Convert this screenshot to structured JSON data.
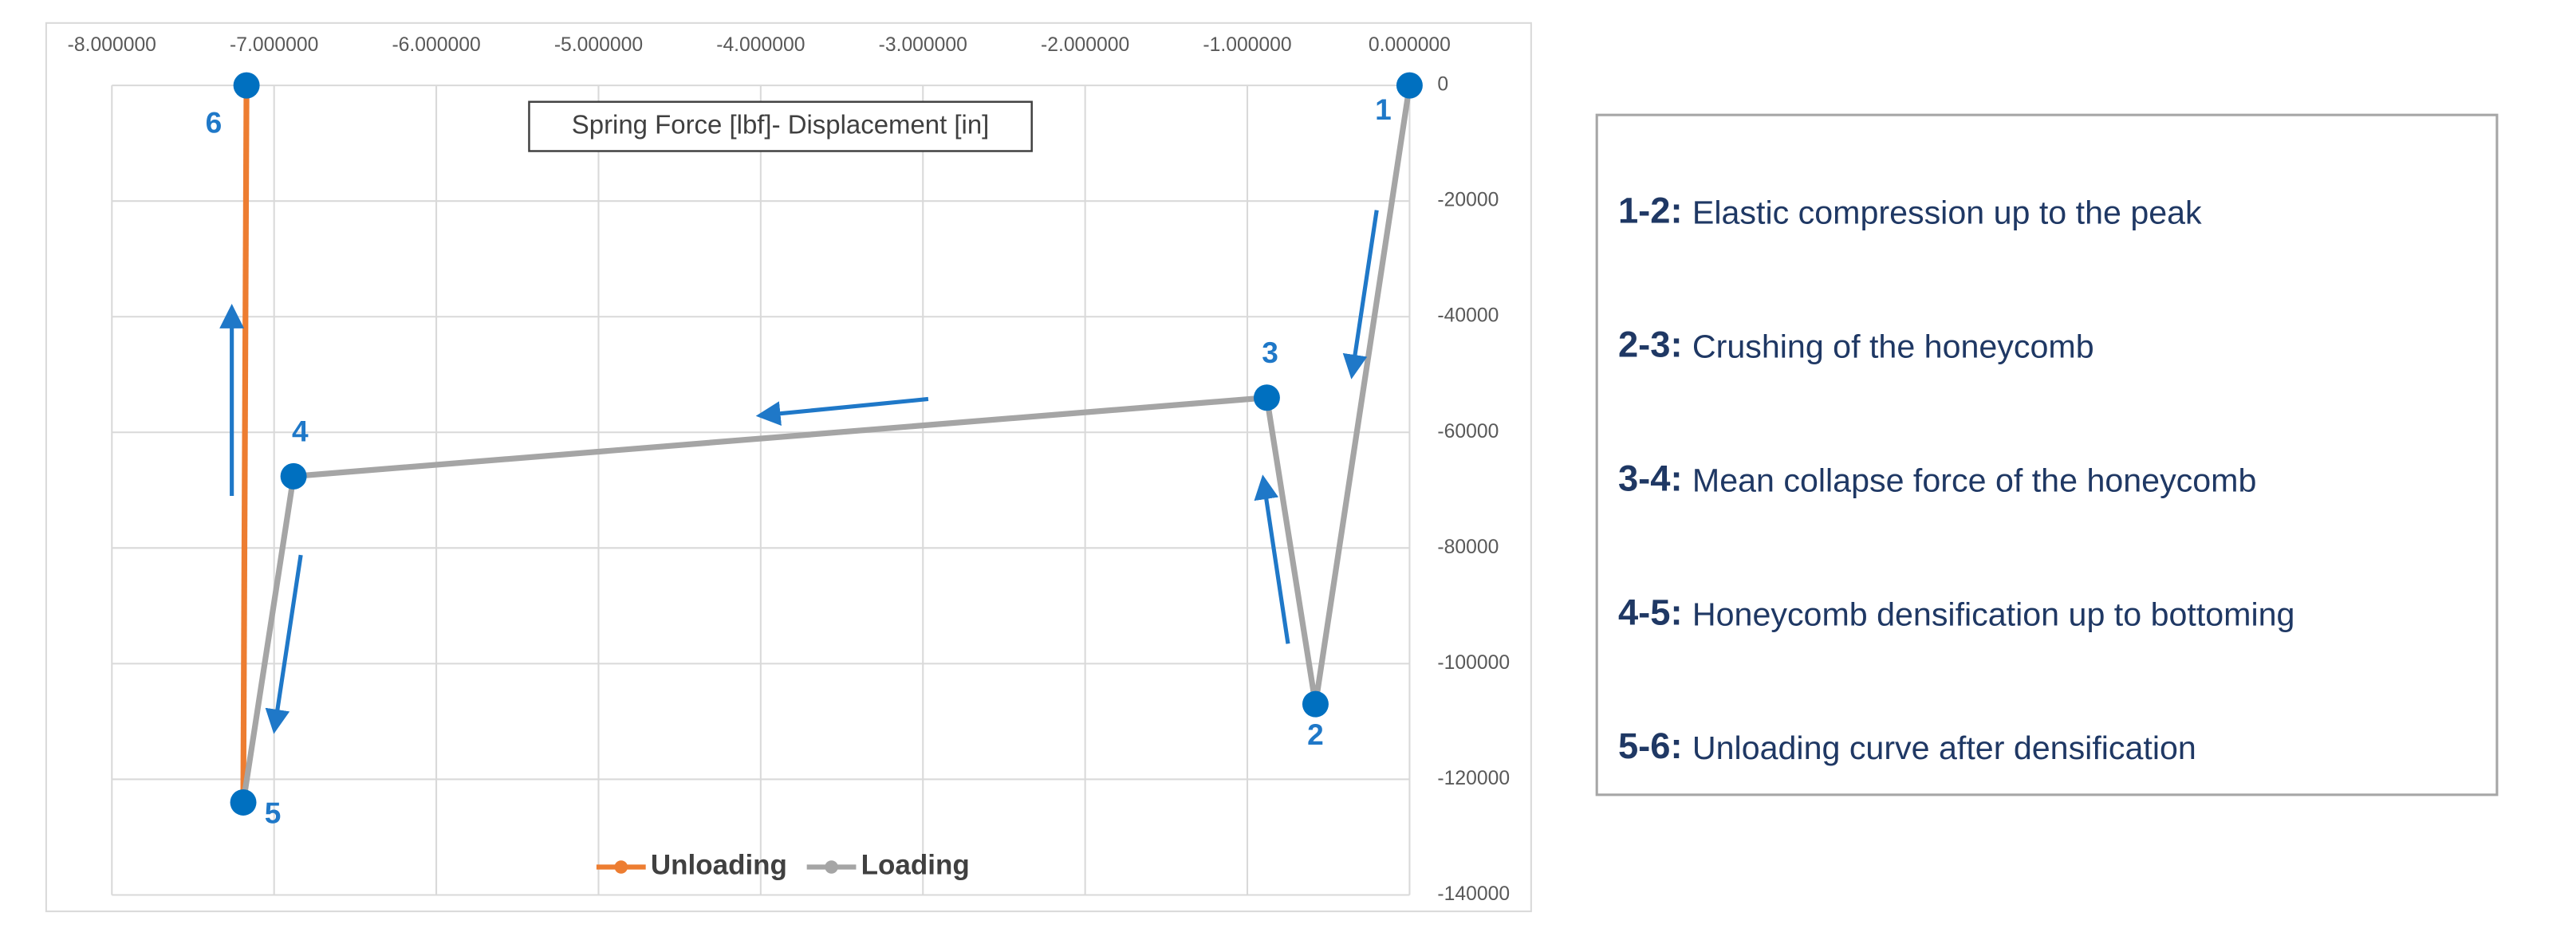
{
  "chart_data": {
    "type": "line",
    "title": "Spring Force [lbf]- Displacement [in]",
    "xlim": [
      -8,
      0
    ],
    "ylim": [
      -140000,
      0
    ],
    "xticks": [
      {
        "value": -8,
        "label": "-8.000000"
      },
      {
        "value": -7,
        "label": "-7.000000"
      },
      {
        "value": -6,
        "label": "-6.000000"
      },
      {
        "value": -5,
        "label": "-5.000000"
      },
      {
        "value": -4,
        "label": "-4.000000"
      },
      {
        "value": -3,
        "label": "-3.000000"
      },
      {
        "value": -2,
        "label": "-2.000000"
      },
      {
        "value": -1,
        "label": "-1.000000"
      },
      {
        "value": 0,
        "label": "0.000000"
      }
    ],
    "yticks": [
      0,
      -20000,
      -40000,
      -60000,
      -80000,
      -100000,
      -120000,
      -140000
    ],
    "grid": true,
    "legend": "bottom",
    "series": [
      {
        "name": "Unloading",
        "color": "#ed7d31",
        "x": [
          -7.19,
          -7.17
        ],
        "values": [
          -124000,
          0
        ]
      },
      {
        "name": "Loading",
        "color": "#a5a5a5",
        "x": [
          0,
          -0.58,
          -0.88,
          -6.88,
          -7.19
        ],
        "values": [
          0,
          -107000,
          -54000,
          -67600,
          -124000
        ]
      }
    ],
    "points": [
      {
        "label": "1",
        "x": 0,
        "y": 0
      },
      {
        "label": "2",
        "x": -0.58,
        "y": -107000
      },
      {
        "label": "3",
        "x": -0.88,
        "y": -54000
      },
      {
        "label": "4",
        "x": -6.88,
        "y": -67600
      },
      {
        "label": "5",
        "x": -7.19,
        "y": -124000
      },
      {
        "label": "6",
        "x": -7.17,
        "y": 0
      }
    ]
  },
  "legend_panel": {
    "items": [
      {
        "key": "1-2:",
        "text": "Elastic compression up to the peak"
      },
      {
        "key": "2-3:",
        "text": "Crushing of the honeycomb"
      },
      {
        "key": "3-4:",
        "text": "Mean collapse force of the honeycomb"
      },
      {
        "key": "4-5:",
        "text": "Honeycomb densification up to bottoming"
      },
      {
        "key": "5-6:",
        "text": "Unloading curve after densification"
      }
    ]
  }
}
